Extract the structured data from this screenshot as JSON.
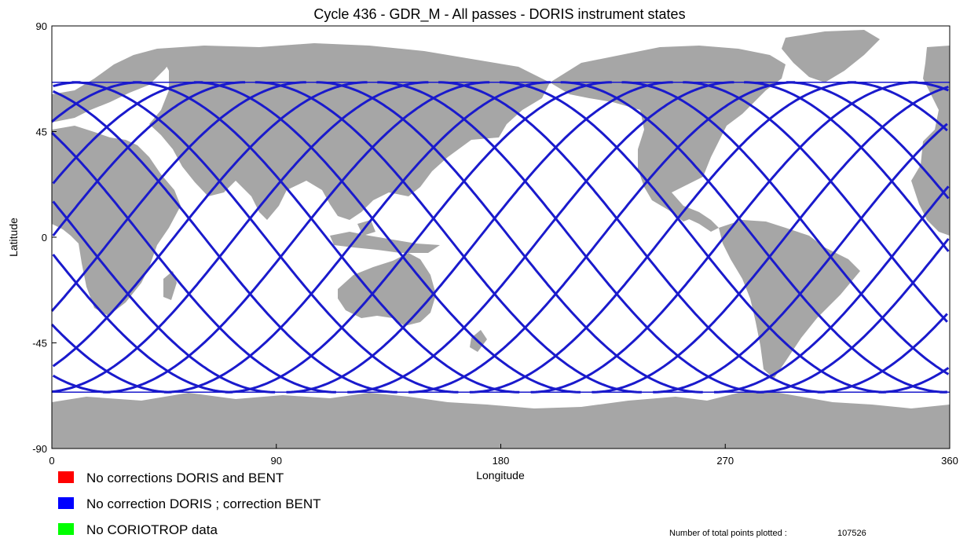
{
  "chart_data": {
    "type": "scatter",
    "title": "Cycle 436 - GDR_M -  All passes - DORIS instrument states",
    "xlabel": "Longitude",
    "ylabel": "Latitude",
    "xlim": [
      0,
      360
    ],
    "ylim": [
      -90,
      90
    ],
    "xticks": [
      "0",
      "90",
      "180",
      "270",
      "360"
    ],
    "yticks": [
      "90",
      "45",
      "0",
      "-45",
      "-90"
    ],
    "land_color": "#a6a6a6",
    "ocean_color": "#ffffff",
    "orbit": {
      "max_latitude": 66,
      "ascending_node_longitudes": [
        70,
        127,
        198,
        264,
        334
      ],
      "descending_node_longitudes": [
        25,
        95,
        160,
        230,
        300,
        350
      ],
      "color": "#1a1acc"
    },
    "legend": [
      {
        "label": "No corrections DORIS and BENT",
        "color": "#ff0000"
      },
      {
        "label": "No correction DORIS ; correction BENT",
        "color": "#0000ff"
      },
      {
        "label": "No CORIOTROP data",
        "color": "#00ff00"
      }
    ],
    "footer": {
      "label": "Number of total points plotted :",
      "value": "107526"
    }
  }
}
